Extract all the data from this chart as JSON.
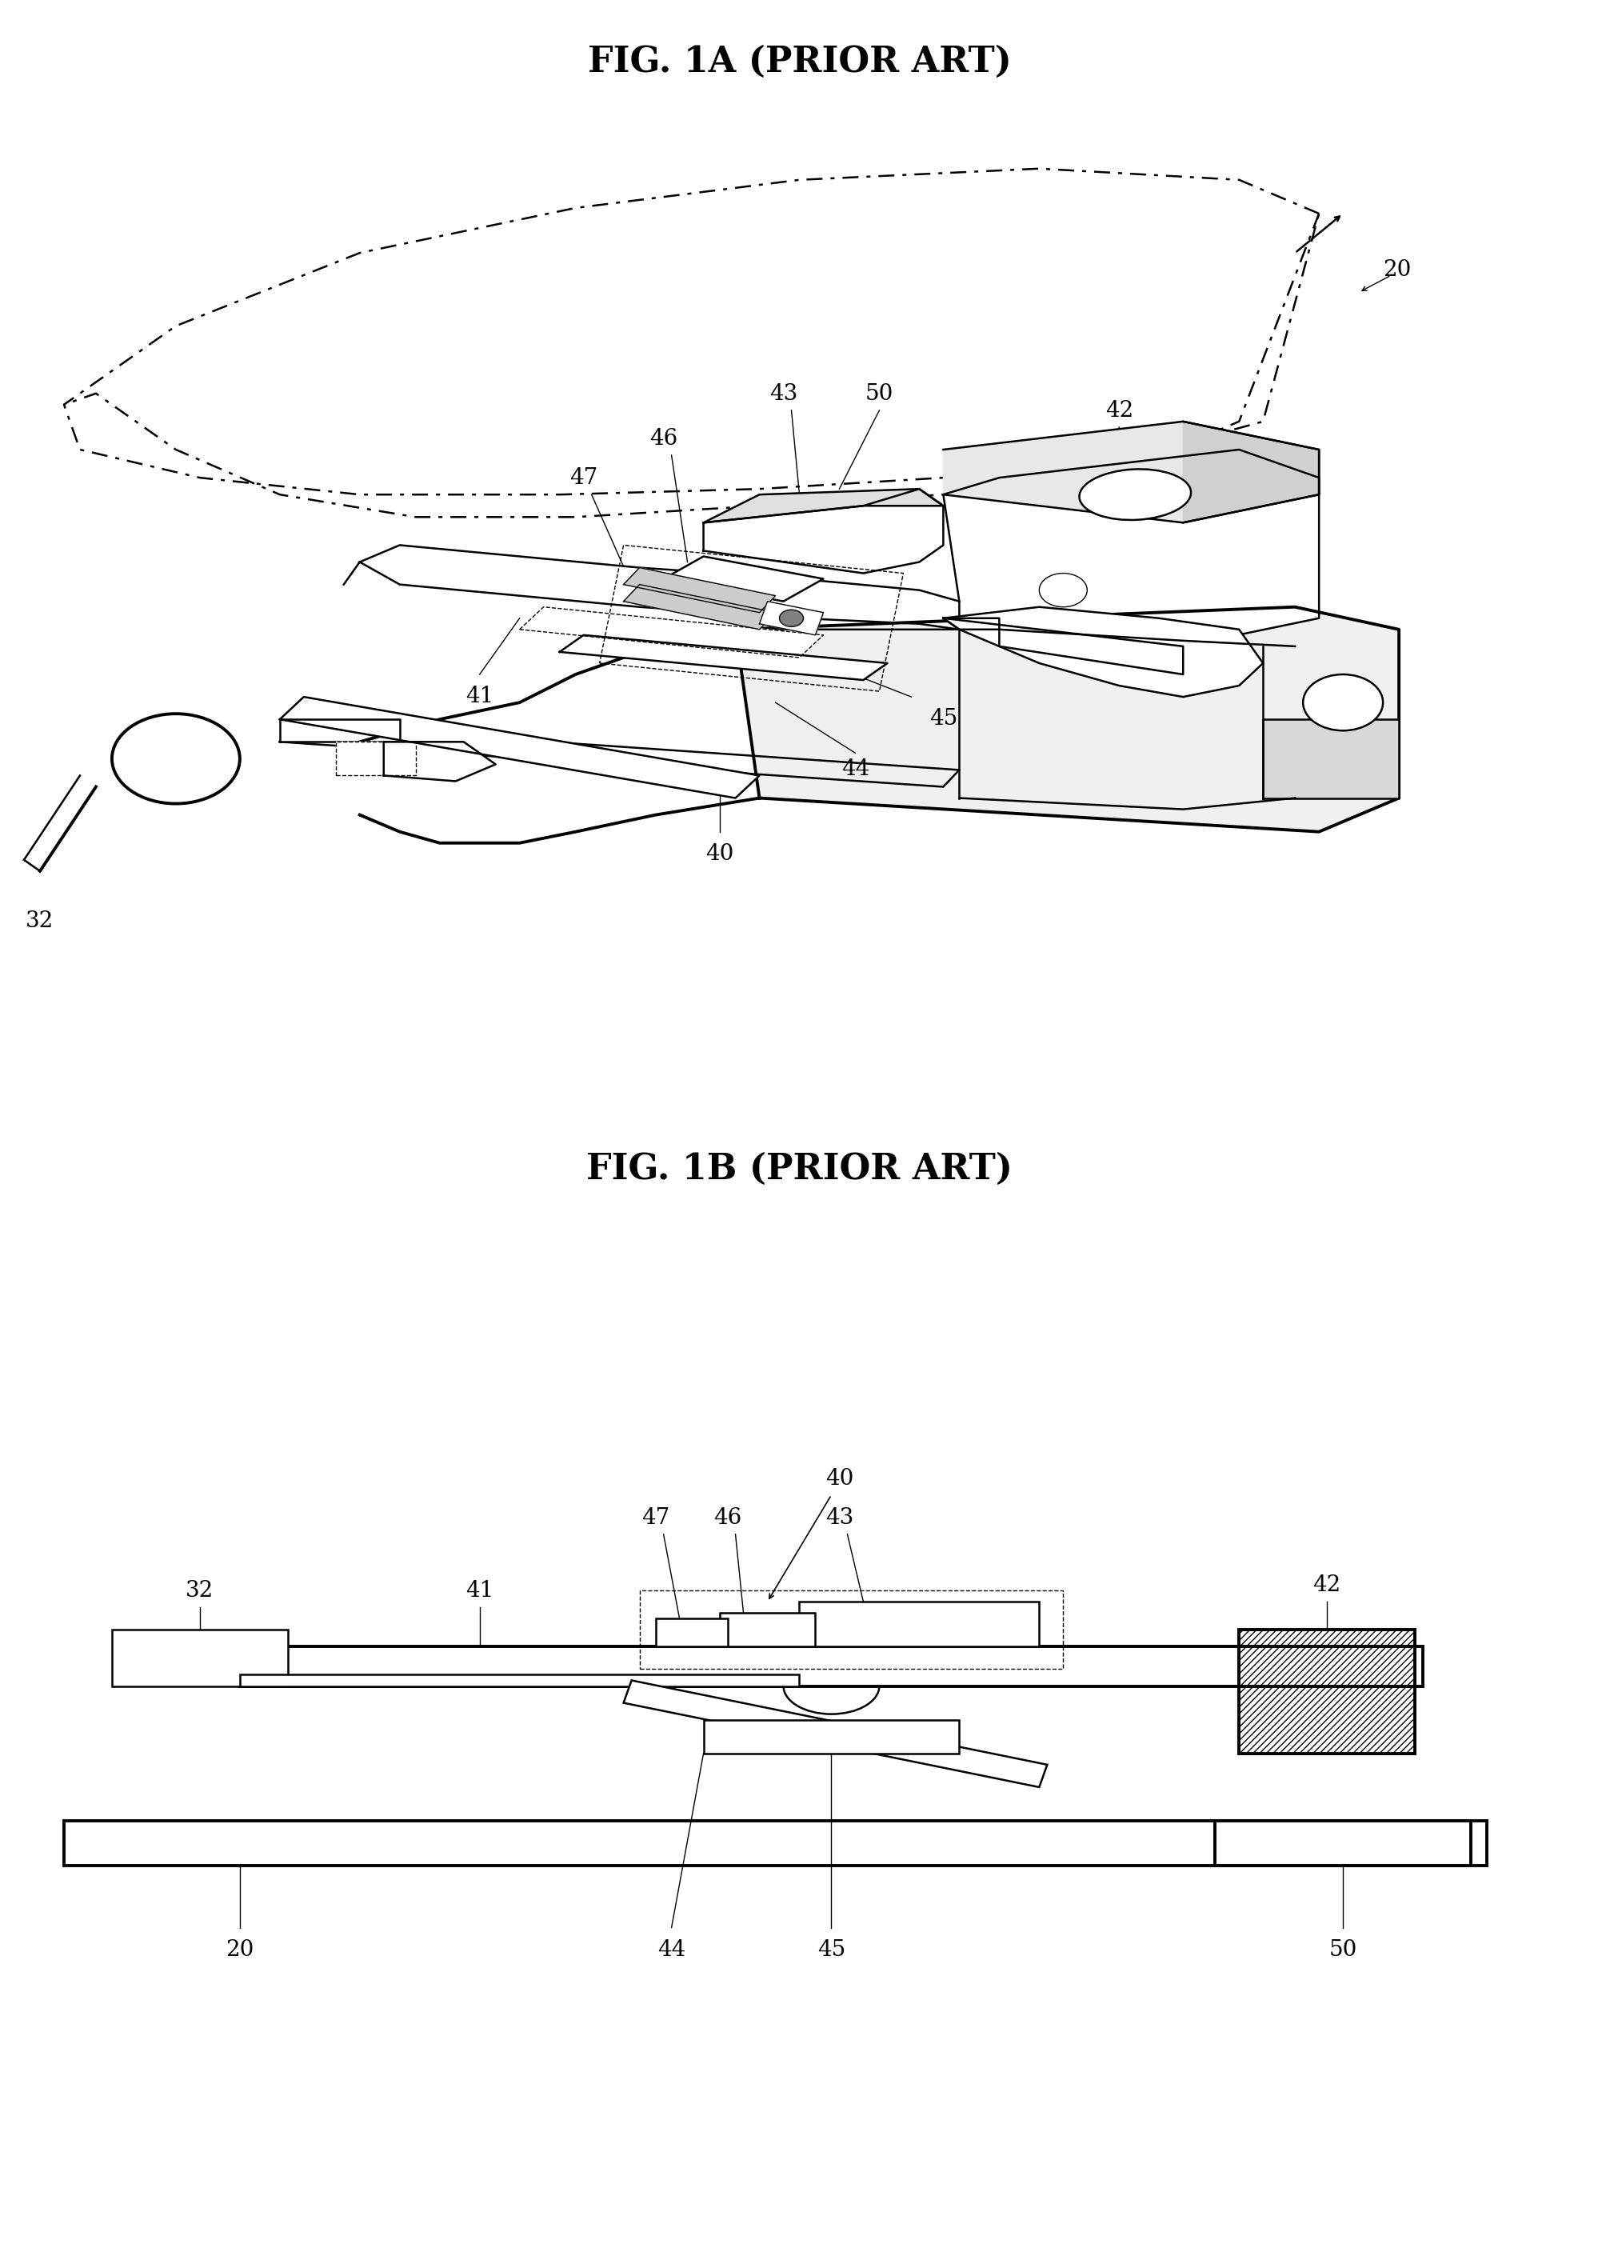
{
  "fig1a_title": "FIG. 1A (PRIOR ART)",
  "fig1b_title": "FIG. 1B (PRIOR ART)",
  "bg": "#ffffff",
  "lw1": 1.0,
  "lw2": 1.8,
  "lw3": 2.8,
  "fs_title": 32,
  "fs_label": 20
}
